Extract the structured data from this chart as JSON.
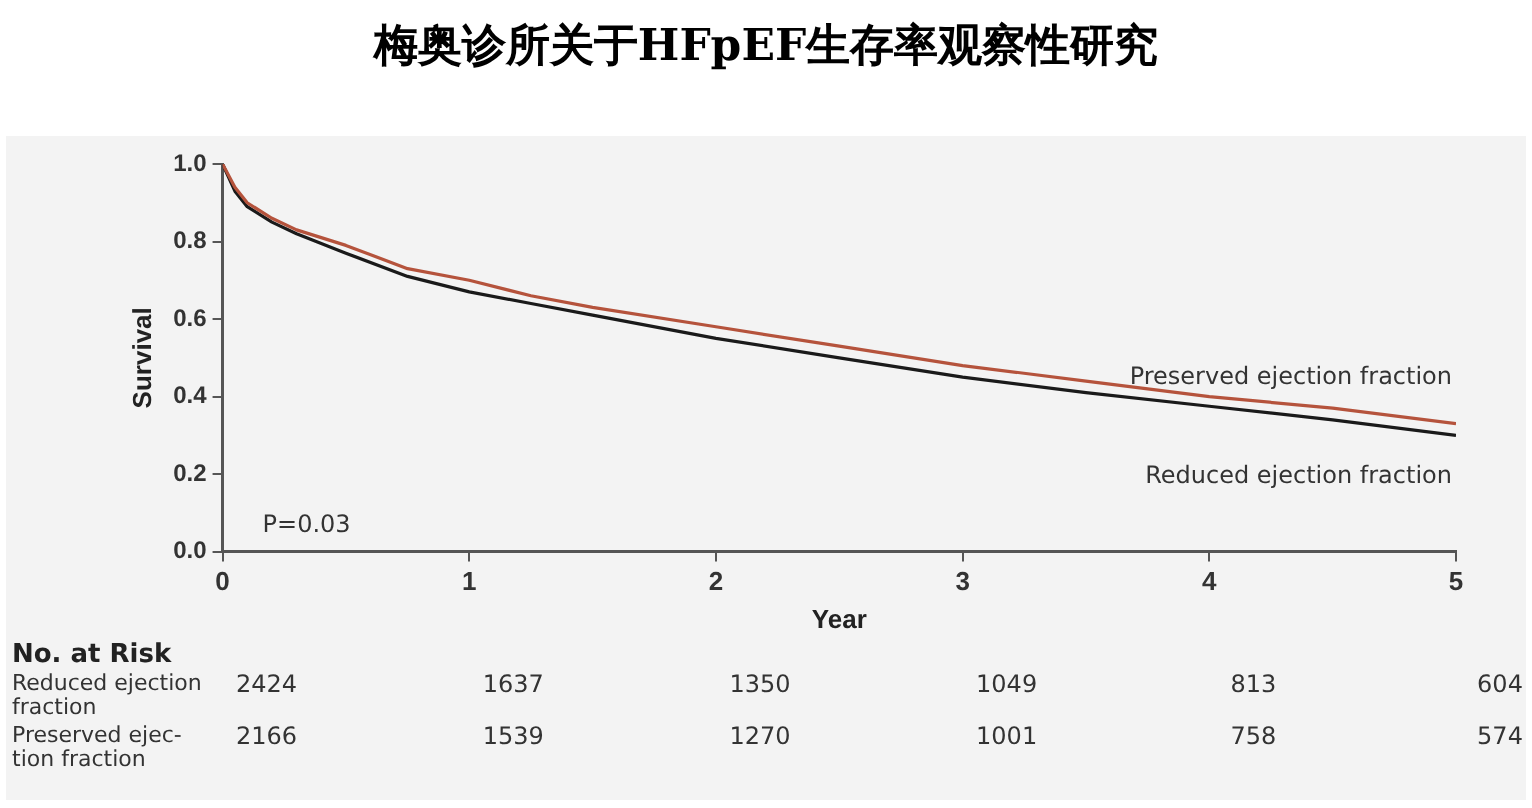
{
  "chart_data": {
    "type": "line",
    "title": "梅奥诊所关于HFpEF生存率观察性研究",
    "xlabel": "Year",
    "ylabel": "Survival",
    "series": [
      {
        "name": "Preserved ejection fraction",
        "color": "#b5533c",
        "x": [
          0,
          0.05,
          0.1,
          0.2,
          0.3,
          0.5,
          0.75,
          1,
          1.25,
          1.5,
          2,
          2.5,
          3,
          3.5,
          4,
          4.5,
          5
        ],
        "values": [
          1,
          0.94,
          0.9,
          0.86,
          0.83,
          0.79,
          0.73,
          0.7,
          0.66,
          0.63,
          0.58,
          0.53,
          0.48,
          0.44,
          0.4,
          0.37,
          0.33
        ]
      },
      {
        "name": "Reduced ejection fraction",
        "color": "#1a1a1a",
        "x": [
          0,
          0.05,
          0.1,
          0.2,
          0.3,
          0.5,
          0.75,
          1,
          1.25,
          1.5,
          2,
          2.5,
          3,
          3.5,
          4,
          4.5,
          5
        ],
        "values": [
          1,
          0.93,
          0.89,
          0.85,
          0.82,
          0.77,
          0.71,
          0.67,
          0.64,
          0.61,
          0.55,
          0.5,
          0.45,
          0.41,
          0.375,
          0.34,
          0.3
        ]
      }
    ],
    "xlim": [
      0,
      5
    ],
    "xticks": [
      0,
      1,
      2,
      3,
      4,
      5
    ],
    "ylim": [
      0,
      1
    ],
    "yticks": [
      {
        "value": 0,
        "label": "0.0"
      },
      {
        "value": 0.2,
        "label": "0.2"
      },
      {
        "value": 0.4,
        "label": "0.4"
      },
      {
        "value": 0.6,
        "label": "0.6"
      },
      {
        "value": 0.8,
        "label": "0.8"
      },
      {
        "value": 1,
        "label": "1.0"
      }
    ],
    "grid": false,
    "legend": false,
    "marker": "none",
    "line_style": "solid",
    "annotations": [
      "P=0.03",
      "No. at Risk",
      "Reduced ejection fraction",
      "2424",
      "1637",
      "1350",
      "1049",
      "813",
      "604",
      "Preserved ejec-tion fraction",
      "2166",
      "1539",
      "1270",
      "1001",
      "758",
      "574"
    ]
  }
}
